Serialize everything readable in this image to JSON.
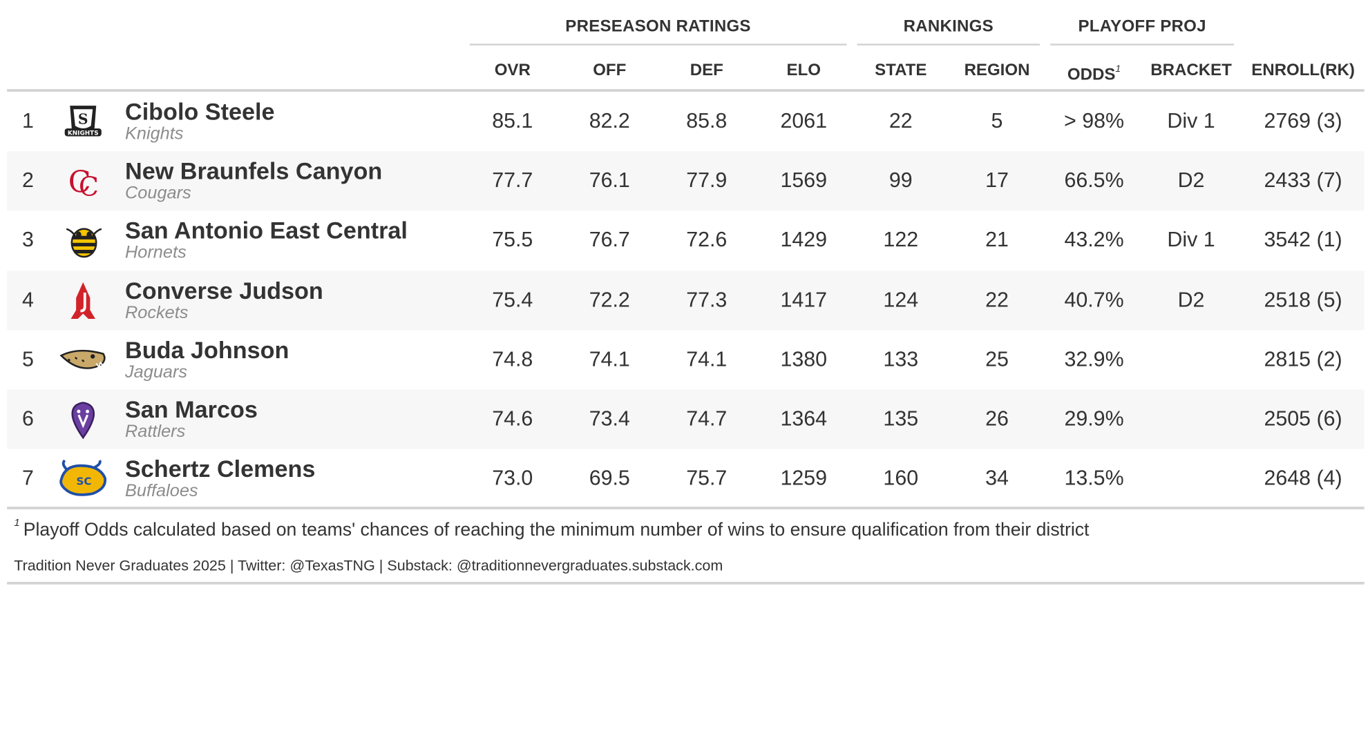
{
  "spanners": {
    "preseason": "PRESEASON RATINGS",
    "rankings": "RANKINGS",
    "playoff": "PLAYOFF PROJ"
  },
  "columns": {
    "ovr": "OVR",
    "off": "OFF",
    "def": "DEF",
    "elo": "ELO",
    "state": "STATE",
    "region": "REGION",
    "odds": "ODDS",
    "odds_footnote_mark": "1",
    "bracket": "BRACKET",
    "enroll": "ENROLL(RK)"
  },
  "rows": [
    {
      "rank": "1",
      "school": "Cibolo Steele",
      "mascot": "Knights",
      "logo": "knights-shield-logo",
      "ovr": "85.1",
      "off": "82.2",
      "def": "85.8",
      "elo": "2061",
      "state": "22",
      "region": "5",
      "odds": "> 98%",
      "bracket": "Div 1",
      "enroll": "2769 (3)"
    },
    {
      "rank": "2",
      "school": "New Braunfels Canyon",
      "mascot": "Cougars",
      "logo": "cc-monogram-logo",
      "ovr": "77.7",
      "off": "76.1",
      "def": "77.9",
      "elo": "1569",
      "state": "99",
      "region": "17",
      "odds": "66.5%",
      "bracket": "D2",
      "enroll": "2433 (7)"
    },
    {
      "rank": "3",
      "school": "San Antonio East Central",
      "mascot": "Hornets",
      "logo": "hornet-logo",
      "ovr": "75.5",
      "off": "76.7",
      "def": "72.6",
      "elo": "1429",
      "state": "122",
      "region": "21",
      "odds": "43.2%",
      "bracket": "Div 1",
      "enroll": "3542 (1)"
    },
    {
      "rank": "4",
      "school": "Converse Judson",
      "mascot": "Rockets",
      "logo": "j-rocket-logo",
      "ovr": "75.4",
      "off": "72.2",
      "def": "77.3",
      "elo": "1417",
      "state": "124",
      "region": "22",
      "odds": "40.7%",
      "bracket": "D2",
      "enroll": "2518 (5)"
    },
    {
      "rank": "5",
      "school": "Buda Johnson",
      "mascot": "Jaguars",
      "logo": "jaguar-logo",
      "ovr": "74.8",
      "off": "74.1",
      "def": "74.1",
      "elo": "1380",
      "state": "133",
      "region": "25",
      "odds": "32.9%",
      "bracket": "",
      "enroll": "2815 (2)"
    },
    {
      "rank": "6",
      "school": "San Marcos",
      "mascot": "Rattlers",
      "logo": "rattlesnake-logo",
      "ovr": "74.6",
      "off": "73.4",
      "def": "74.7",
      "elo": "1364",
      "state": "135",
      "region": "26",
      "odds": "29.9%",
      "bracket": "",
      "enroll": "2505 (6)"
    },
    {
      "rank": "7",
      "school": "Schertz Clemens",
      "mascot": "Buffaloes",
      "logo": "buffalo-logo",
      "ovr": "73.0",
      "off": "69.5",
      "def": "75.7",
      "elo": "1259",
      "state": "160",
      "region": "34",
      "odds": "13.5%",
      "bracket": "",
      "enroll": "2648 (4)"
    }
  ],
  "footnote": {
    "mark": "1",
    "text": "Playoff Odds calculated based on teams' chances of reaching the minimum number of wins to ensure qualification from their district"
  },
  "source": "Tradition Never Graduates 2025 | Twitter: @TexasTNG | Substack: @traditionnevergraduates.substack.com",
  "colors": {
    "text": "#333333",
    "muted": "#8c8c8c",
    "rule": "#d3d3d3",
    "stripe": "#f7f7f7",
    "canyon_red": "#c8102e",
    "judson_red": "#d2232a",
    "hornet_yellow": "#f5c400",
    "rattler_purple": "#6b3fa0",
    "buffalo_gold": "#f2b705",
    "buffalo_blue": "#1f4fa8"
  }
}
